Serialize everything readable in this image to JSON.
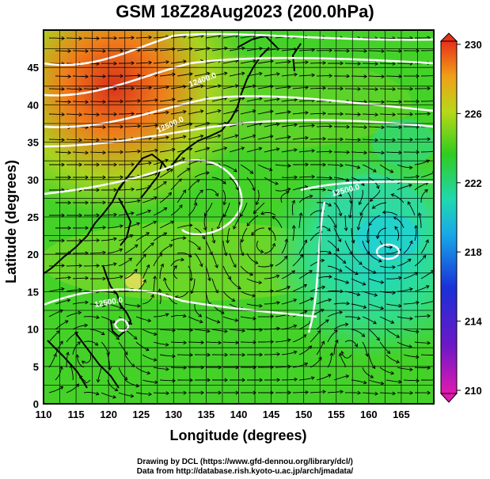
{
  "title": "GSM 18Z28Aug2023 (200.0hPa)",
  "xlabel": "Longitude (degrees)",
  "ylabel": "Latitude  (degrees)",
  "x_ticks": [
    "110",
    "115",
    "120",
    "125",
    "130",
    "135",
    "140",
    "145",
    "150",
    "155",
    "160",
    "165"
  ],
  "y_ticks": [
    "0",
    "5",
    "10",
    "15",
    "20",
    "25",
    "30",
    "35",
    "40",
    "45"
  ],
  "colorbar_ticks": [
    "210",
    "214",
    "218",
    "222",
    "226",
    "230"
  ],
  "contour_labels": [
    "12500.0",
    "12400.0",
    "12500.0",
    "12500.0"
  ],
  "credits": {
    "line1": "Drawing by DCL (https://www.gfd-dennou.org/library/dcl/)",
    "line2": "Data from http://database.rish.kyoto-u.ac.jp/arch/jmadata/"
  },
  "colors": {
    "warm": "#e23a10",
    "mid_green": "#33cc22",
    "cool": "#22dddd",
    "contour": "#ffffff",
    "grid": "#000000"
  }
}
